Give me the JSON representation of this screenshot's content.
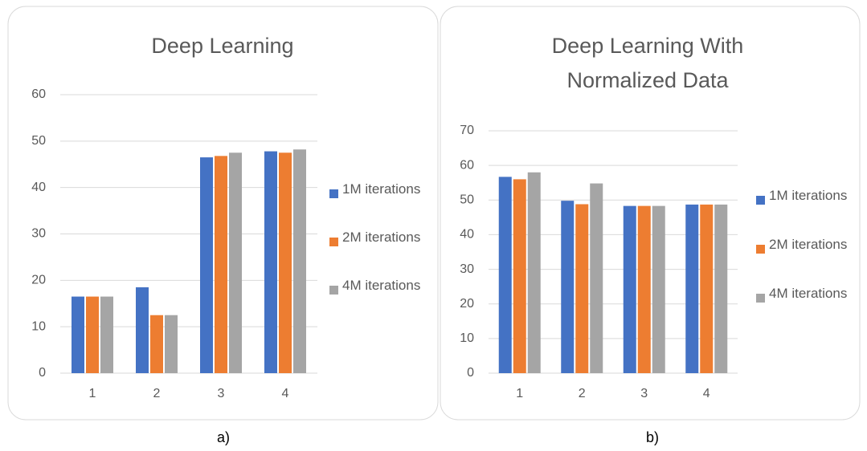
{
  "chart_data": [
    {
      "type": "bar",
      "title": "Deep Learning",
      "caption": "a)",
      "categories": [
        "1",
        "2",
        "3",
        "4"
      ],
      "series": [
        {
          "name": "1M iterations",
          "color": "#4472c4",
          "values": [
            16.5,
            18.5,
            46.5,
            47.8
          ]
        },
        {
          "name": "2M iterations",
          "color": "#ed7d31",
          "values": [
            16.5,
            12.5,
            46.8,
            47.5
          ]
        },
        {
          "name": "4M iterations",
          "color": "#a5a5a5",
          "values": [
            16.5,
            12.5,
            47.5,
            48.2
          ]
        }
      ],
      "ylim": [
        0,
        60
      ],
      "yticks": [
        0,
        10,
        20,
        30,
        40,
        50,
        60
      ],
      "grid": true,
      "legend": "right"
    },
    {
      "type": "bar",
      "title": "Deep Learning With Normalized Data",
      "caption": "b)",
      "categories": [
        "1",
        "2",
        "3",
        "4"
      ],
      "series": [
        {
          "name": "1M iterations",
          "color": "#4472c4",
          "values": [
            56.7,
            49.8,
            48.3,
            48.7
          ]
        },
        {
          "name": "2M iterations",
          "color": "#ed7d31",
          "values": [
            56.0,
            48.8,
            48.3,
            48.7
          ]
        },
        {
          "name": "4M iterations",
          "color": "#a5a5a5",
          "values": [
            58.0,
            54.8,
            48.3,
            48.7
          ]
        }
      ],
      "ylim": [
        0,
        70
      ],
      "yticks": [
        0,
        10,
        20,
        30,
        40,
        50,
        60,
        70
      ],
      "grid": true,
      "legend": "right"
    }
  ]
}
